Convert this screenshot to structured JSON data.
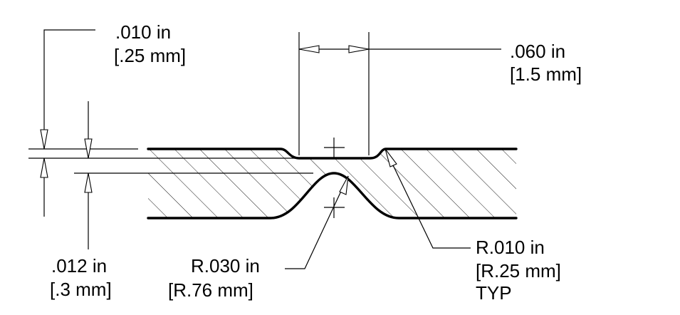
{
  "colors": {
    "line": "#000000",
    "background": "#ffffff"
  },
  "callouts": {
    "depth_top": {
      "line1": ".010 in",
      "line2": "[.25 mm]"
    },
    "width_top": {
      "line1": ".060 in",
      "line2": "[1.5 mm]"
    },
    "thickness": {
      "line1": ".012 in",
      "line2": "[.3 mm]"
    },
    "radius_bottom": {
      "line1": "R.030 in",
      "line2": "[R.76 mm]"
    },
    "radius_corner": {
      "line1": "R.010 in",
      "line2": "[R.25 mm]",
      "line3": "TYP"
    }
  }
}
